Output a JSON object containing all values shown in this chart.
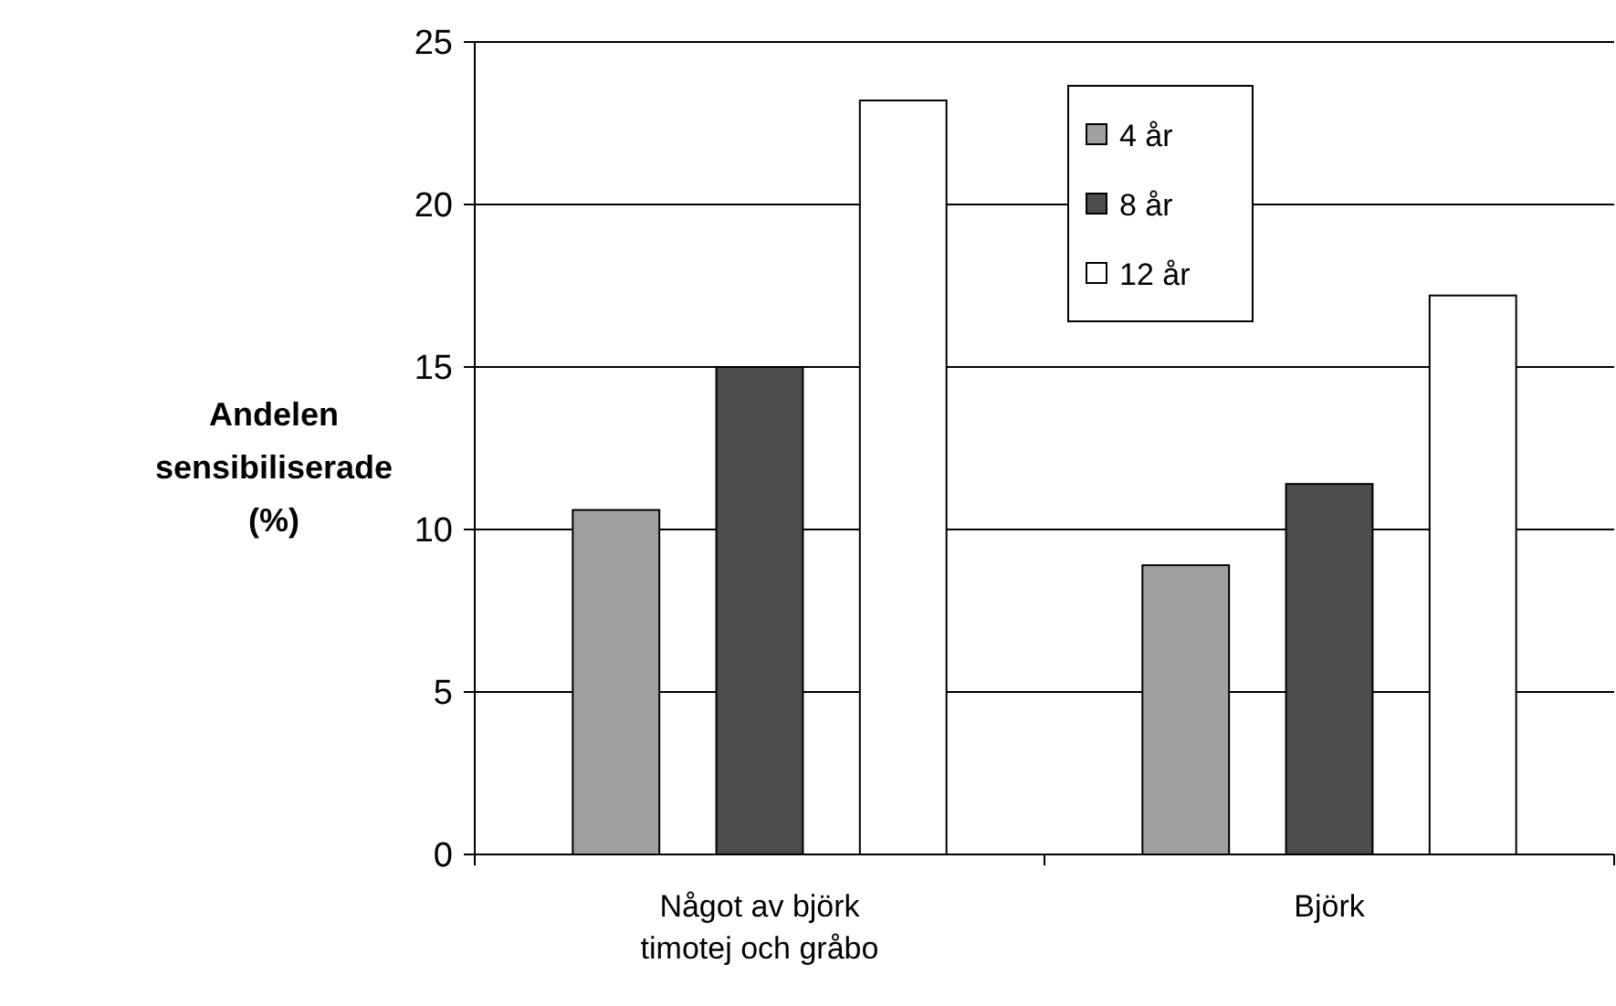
{
  "chart_data": {
    "type": "bar",
    "ylabel": "Andelen sensibiliserade (%)",
    "categories": [
      "Något av björk timotej och gråbo",
      "Björk"
    ],
    "series": [
      {
        "name": "4 år",
        "color": "#a0a0a0",
        "values": [
          10.6,
          8.9
        ]
      },
      {
        "name": "8 år",
        "color": "#4d4d4d",
        "values": [
          15,
          11.4
        ]
      },
      {
        "name": "12 år",
        "color": "#ffffff",
        "values": [
          23.2,
          17.2
        ]
      }
    ],
    "ylim": [
      0,
      25
    ],
    "yticks": [
      0,
      5,
      10,
      15,
      20,
      25
    ],
    "grid": "y",
    "legend": "top right"
  }
}
